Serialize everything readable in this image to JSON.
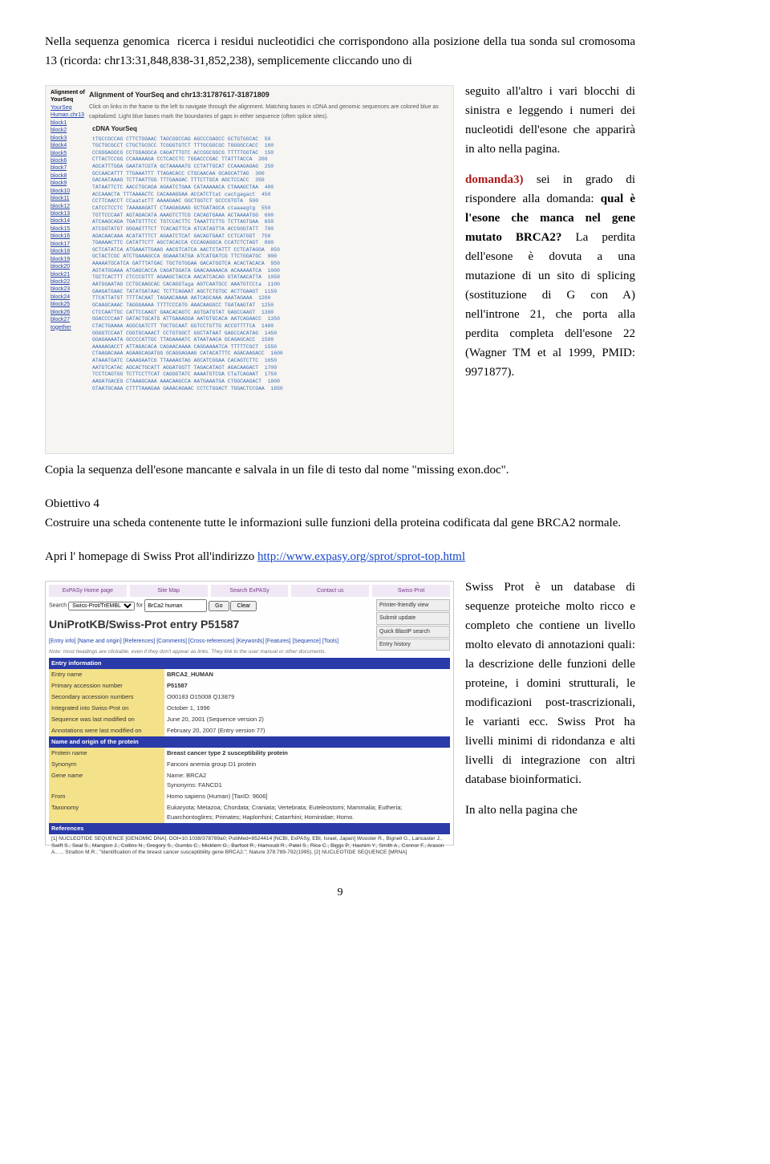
{
  "intro": {
    "text": "Nella sequenza genomica  ricerca i residui nucleotidici che corrispondono alla posizione della tua sonda sul cromosoma 13 (ricorda: chr13:31,848,838-31,852,238), semplicemente cliccando uno di seguito all'altro i vari blocchi di sinistra e leggendo i numeri dei nucleotidi dell'esone che apparirà in alto nella pagina."
  },
  "domanda3": {
    "label": "domanda3)",
    "text1": " sei in grado di rispondere alla domanda: ",
    "bold": "qual è l'esone che manca nel gene mutato BRCA2?",
    "text2": " La perdita dell'esone è dovuta a una mutazione di un sito di splicing (sostituzione di G con A)  nell'introne 21, che porta alla perdita completa dell'esone 22 (Wagner TM et al 1999, PMID: 9971877)."
  },
  "copy_line": "Copia la sequenza dell'esone mancante e salvala in un file di testo dal nome \"missing exon.doc\".",
  "obiettivo4": {
    "title": "Obiettivo 4",
    "text": "Costruire una scheda contenente tutte le informazioni sulle funzioni della proteina codificata dal gene BRCA2 normale."
  },
  "swissprot_open": {
    "pre": "Apri l' homepage di Swiss Prot all'indirizzo ",
    "url": "http://www.expasy.org/sprot/sprot-top.html"
  },
  "swissprot_desc": "Swiss Prot è un database di sequenze proteiche molto ricco e completo che contiene un livello molto elevato di annotazioni quali: la descrizione delle funzioni delle proteine, i domini strutturali, le modificazioni post-trascrizionali, le varianti ecc. Swiss Prot ha livelli minimi di ridondanza e alti livelli di integrazione con altri database bioinformatici.",
  "in_alto": "In alto nella pagina che",
  "page_number": "9",
  "blat_img": {
    "alignment_label": "Alignment of",
    "yourseq": "YourSeq",
    "title": "Alignment of YourSeq and chr13:31787617-31871809",
    "subtitle": "Click on links in the frame to the left to navigate through the alignment. Matching bases in cDNA and genomic sequences are colored blue as capitalized. Light blue bases mark the boundaries of gaps in either sequence (often splice sites).",
    "cdna_label": "cDNA YourSeq",
    "left_links": [
      "YourSeq",
      "Human.chr13",
      "block1",
      "block2",
      "block3",
      "block4",
      "block5",
      "block6",
      "block7",
      "block8",
      "block9",
      "block10",
      "block11",
      "block12",
      "block13",
      "block14",
      "block15",
      "block16",
      "block17",
      "block18",
      "block19",
      "block20",
      "block21",
      "block22",
      "block23",
      "block24",
      "block25",
      "block26",
      "block27",
      "together"
    ],
    "seq_lines": [
      "tTGCCGCCAG CTTCTGGAAC TAGCGGCCAG AGCCCGAGCC GCTGTGGCAC  50",
      "TGCTGCGCCT CTGCTGCGCC TCGGGTGTCT TTTGCGGCGC TGGGGCCACC  100",
      "CCGGGAGGCG CCTGGAGGCA CAGATTTGTC ACCGGCGGCG TTTTTGGTAC  150",
      "CTTACTCCGG CCAAAAAGA CCTCACCTC TGGACCCGAC TTATTTACCA  200",
      "AGCATTTGGA GAATATCGTA GCTAAAAATG CCTATTGCAT CCAAAGAGAG  250",
      "GCCAACATTT TTGAAATTT TTAGACACC CTGCAACAA GCAGCATTAG  300",
      "GACAATAAAG TCTTAATTGG TTTGAAGAC TTTCTTGCA AGCTCCACC  350",
      "TATAATTCTC AACCTGCAGA AGAATCTGAA CATAAAAACA CTAAAGCTAA  400",
      "ACCAAACTA TTTAAAACTC CACAAAGGAA ACCATCTtat cactgagact  450",
      "CCTTCAACCT CCaatatTT AAAAGAAC GGCTGGTCT GCCCGTGTA  500",
      "CATCCTCCTC TAAAAAGATT CTAAGAGAAG GCTGATAGCA ctaaaagtg  550",
      "TGTTCCCAAT AGTAGACATA AAAGTCTTCG CACAGTGAAA ACTAAAATGG  600",
      "ATCAAGCAGA TGATGTTTCC TGTCCACTTC TAAATTCTTG TCTTAGTGAA  650",
      "ATCGGTATGT GGGAGTTTCT TCACAGTTCA ATCATAGTTA ACCGGGTATT  700",
      "AGACAACAAA ACATATTTCT AGAATCTCAT GACAGTGAAT CCTCATGGT  750",
      "TGAAAACTTC CATATTCTT AGCTACACCA CCCAGAGGCA CCATCTCTAGT  800",
      "GCTCATATCA ATGAAATTGAAG AACGTCATCA AACTCTATTT CCTCATAGGA  850",
      "GCTACTCGC ATCTGAAAGCCA GGAAATATGA ATCATGATCG TTCTGGATGC  900",
      "AAAAATGCATCA GATTTATGAC TGCTGTGGAA GACATGGTCA ACACTACACA  950",
      "AGTATGGAAA ATGAGCACCA CAGATGGATA GAACAAAAACA ACAAAAATCA  1000",
      "TGCTCACTTT CTCCCGTTT AGAAGCTACCA AACATCACAG GTATAACATTA  1050",
      "AATGGAATAG CCTGCAAGCAC CACAGGTaga AGTCAATGCC AAATGTCCta  1100",
      "GAAGATGAAC TATATGATAAC TCTTCAGAAT AGCTCTGTGC ACTTGAAGT  1150",
      "TTCATTATGT TTTTACAAT TAGAACAAAA AATCAGCAAA AAATAGAAA  1200",
      "GCAAGCAAAC TAGGGAAAA TTTTCCCATG AAACAAGGCC TGATAAGTAT  1250",
      "CTCCAATTGC CATTCCAAGT GAACACAGTC AGTGATGTAT GAGCCAAGT  1300",
      "GGACCCCAAT GATACTGCATG ATTGAAAGGA AATGTGCACA AATCAGAACC  1350",
      "CTACTGAAAA AGGCGATCTT TGCTGCAAT GGTCCTGTTG ACCGTTTTCA  1400",
      "GGGGTCCAAT CGGTGCAAACT CCTGTGGCT GGCTATAAT GAGCCACATAG  1450",
      "GGAGAAAATA GCCCCATTGC TTAGAAAATC ATAATAACA GCAGAGCACC  1500",
      "AAAAAGACCT ATTAGACACA CAGAACAAAA CAGGAAAATCA TTTTTCGCT  1550",
      "CTAAGACAAA AGAAGCAGATGG GCAGGAGAAG CATACATTTC AGACAAGACC  1600",
      "ATAAATGATC CAAAGAATCG TTAAAAGTAG AGCATCGGAA CACAGTCTTC  1650",
      "AATGTCATAC AGCACTGCATT AGGATGGTT TAGACATAGT AGACAAGACT  1700",
      "TCCTCAGTGG TCTTCCTTCAT CAGGGTATC AAAATGTCGA CTaTCAGAAT  1750",
      "AAGATGACEG CTAAAGCAAA AAACAAGCCA AATGAAATGA CTGGCAAGACT  1800",
      "GTAATGCAAA CTTTTAAAGAA GAAACAGAAC CCTCTGGACT TGGACTCCGAA  1850"
    ]
  },
  "expasy_img": {
    "tabs": [
      "ExPASy Home page",
      "Site Map",
      "Search ExPASy",
      "Contact us",
      "Swiss-Prot"
    ],
    "search_label": "Search",
    "search_db": "Swiss-Prot/TrEMBL",
    "search_for": "for",
    "search_val": "BrCa2 human",
    "btn_go": "Go",
    "btn_clear": "Clear",
    "side_buttons": [
      "Printer-friendly view",
      "Submit update",
      "Quick BlastP search",
      "Entry history"
    ],
    "h1": "UniProtKB/Swiss-Prot entry P51587",
    "nav": "[Entry info] [Name and origin] [References] [Comments] [Cross-references] [Keywords] [Features] [Sequence] [Tools]",
    "note": "Note: most headings are clickable, even if they don't appear as links. They link to the user manual or other documents.",
    "sec1": "Entry information",
    "rows1": [
      [
        "Entry name",
        "BRCA2_HUMAN"
      ],
      [
        "Primary accession number",
        "P51587"
      ],
      [
        "Secondary accession numbers",
        "O00183 O15008 Q13879"
      ],
      [
        "Integrated into Swiss-Prot on",
        "October 1, 1996"
      ],
      [
        "Sequence was last modified on",
        "June 20, 2001 (Sequence version 2)"
      ],
      [
        "Annotations were last modified on",
        "February 20, 2007 (Entry version 77)"
      ]
    ],
    "sec2": "Name and origin of the protein",
    "rows2": [
      [
        "Protein name",
        "Breast cancer type 2 susceptibility protein"
      ],
      [
        "Synonym",
        "Fanconi anemia group D1 protein"
      ],
      [
        "Gene name",
        "Name: BRCA2\nSynonyms: FANCD1"
      ],
      [
        "From",
        "Homo sapiens (Human) [TaxID: 9606]"
      ],
      [
        "Taxonomy",
        "Eukaryota; Metazoa; Chordata; Craniata; Vertebrata; Euteleostomi; Mammalia; Eutheria; Euarchontoglires; Primates; Haplorrhini; Catarrhini; Hominidae; Homo."
      ]
    ],
    "sec3": "References",
    "ref": "[1]  NUCLEOTIDE SEQUENCE [GENOMIC DNA].\n     DOI=10.1038/378789a0; PubMed=8524414 [NCBI, ExPASy, EBI, Israel, Japan]\n     Wooster R., Bignell G., Lancaster J., Swift S., Seal S., Mangion J., Collins N., Gregory S., Gumbs C., Micklem G., Barfoot R., Hamoudi R., Patel S., Rice C., Biggs P., Hashim Y., Smith A., Connor F., Arason A., ... Stratton M.R.;\n     \"Identification of the breast cancer susceptibility gene BRCA2.\";\n     Nature 378:789-792(1995).\n[2]  NUCLEOTIDE SEQUENCE [MRNA]"
  }
}
